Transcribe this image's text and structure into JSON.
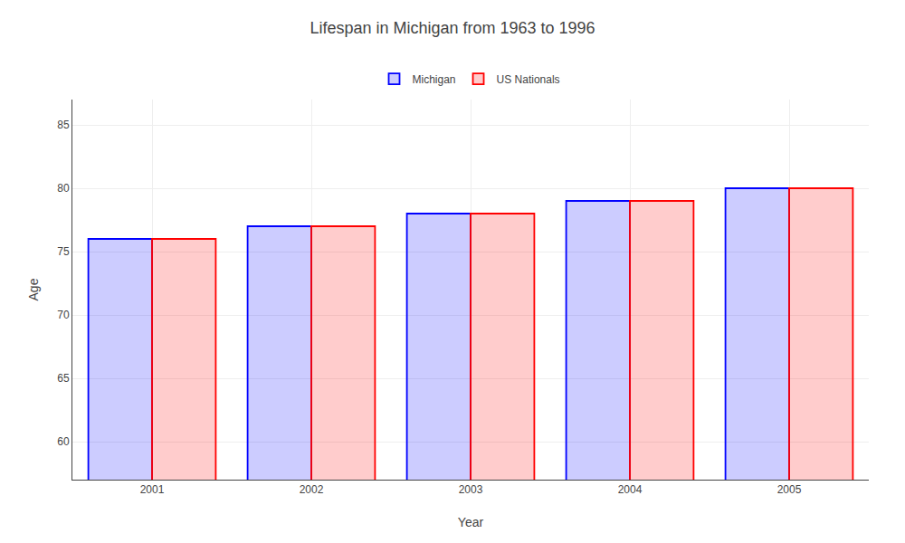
{
  "chart_data": {
    "type": "bar",
    "title": "Lifespan in Michigan from 1963 to 1996",
    "xlabel": "Year",
    "ylabel": "Age",
    "categories": [
      "2001",
      "2002",
      "2003",
      "2004",
      "2005"
    ],
    "series": [
      {
        "name": "Michigan",
        "color": "#0000ff",
        "values": [
          76,
          77,
          78,
          79,
          80
        ]
      },
      {
        "name": "US Nationals",
        "color": "#ff0000",
        "values": [
          76,
          77,
          78,
          79,
          80
        ]
      }
    ],
    "ylim": [
      57,
      87
    ],
    "yticks": [
      60,
      65,
      70,
      75,
      80,
      85
    ],
    "grid": true,
    "legend": "top"
  }
}
